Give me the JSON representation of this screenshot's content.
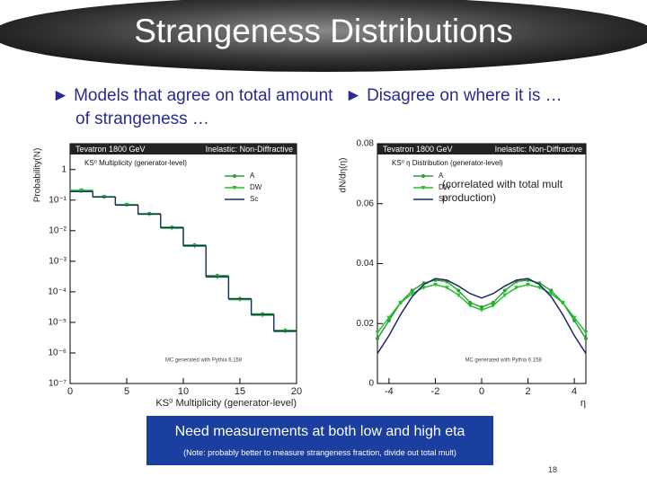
{
  "title": "Strangeness Distributions",
  "bullets": [
    "► Models that agree on total amount of strangeness …",
    "► Disagree on where it is …"
  ],
  "chart_data": [
    {
      "type": "histogram",
      "banner": [
        "Tevatron 1800 GeV",
        "Inelastic: Non-Diffractive"
      ],
      "subtitle": "KS⁰ Multiplicity (generator-level)",
      "x_label": "KS⁰ Multiplicity (generator-level)",
      "y_label": "Probability(N)",
      "annotation": "MC generated with Pythia 6.158",
      "bins": [
        0,
        2,
        4,
        6,
        8,
        10,
        12,
        14,
        16,
        18,
        20
      ],
      "series": [
        {
          "name": "A",
          "color": "#2e9e3a",
          "marker": "circle",
          "values": [
            0.2,
            0.13,
            0.072,
            0.036,
            0.013,
            0.0034,
            0.00034,
            6e-05,
            1.9e-05,
            5.5e-06
          ]
        },
        {
          "name": "DW",
          "color": "#22c02c",
          "marker": "triangle",
          "values": [
            0.21,
            0.125,
            0.07,
            0.034,
            0.012,
            0.0031,
            0.0003,
            5.5e-05,
            1.7e-05,
            5e-06
          ]
        },
        {
          "name": "Sc",
          "color": "#1b2a66",
          "values": [
            0.19,
            0.126,
            0.068,
            0.035,
            0.0125,
            0.0032,
            0.00031,
            5.9e-05,
            1.8e-05,
            5.2e-06
          ]
        }
      ],
      "xlim": [
        0,
        20
      ],
      "xticks": [
        0,
        5,
        10,
        15,
        20
      ],
      "ylim": [
        1e-07,
        7
      ],
      "yscale": "log",
      "yticks": [
        1,
        {
          "value": 0.1,
          "label": "10⁻¹"
        },
        {
          "value": 0.01,
          "label": "10⁻²"
        },
        {
          "value": 0.001,
          "label": "10⁻³"
        },
        {
          "value": 0.0001,
          "label": "10⁻⁴"
        },
        {
          "value": 1e-05,
          "label": "10⁻⁵"
        },
        {
          "value": 1e-06,
          "label": "10⁻⁶"
        },
        {
          "value": 1e-07,
          "label": "10⁻⁷"
        }
      ],
      "legend": "upper right"
    },
    {
      "type": "line",
      "banner": [
        "Tevatron 1800 GeV",
        "Inelastic: Non-Diffractive"
      ],
      "subtitle": "KS⁰ η Distribution (generator-level)",
      "x_label": "η",
      "y_label": "dN/dη(η)",
      "annotation": "MC generated with Pythia 6.158",
      "note": "(correlated with total mult production)",
      "x": [
        -4.5,
        -4,
        -3.5,
        -3,
        -2.5,
        -2,
        -1.5,
        -1,
        -0.5,
        0,
        0.5,
        1,
        1.5,
        2,
        2.5,
        3,
        3.5,
        4,
        4.5
      ],
      "series": [
        {
          "name": "A",
          "color": "#2e9e3a",
          "marker": "circle",
          "values": [
            0.015,
            0.021,
            0.027,
            0.031,
            0.0335,
            0.0345,
            0.034,
            0.031,
            0.027,
            0.0255,
            0.027,
            0.031,
            0.034,
            0.0345,
            0.0335,
            0.031,
            0.027,
            0.021,
            0.015
          ]
        },
        {
          "name": "DW",
          "color": "#22c02c",
          "marker": "triangle",
          "values": [
            0.017,
            0.022,
            0.027,
            0.03,
            0.032,
            0.033,
            0.032,
            0.0295,
            0.026,
            0.0245,
            0.026,
            0.0295,
            0.032,
            0.033,
            0.032,
            0.03,
            0.027,
            0.022,
            0.017
          ]
        },
        {
          "name": "Sc",
          "color": "#1b2a66",
          "values": [
            0.01,
            0.016,
            0.023,
            0.029,
            0.033,
            0.035,
            0.0345,
            0.0325,
            0.03,
            0.0285,
            0.03,
            0.0325,
            0.0345,
            0.035,
            0.033,
            0.029,
            0.023,
            0.016,
            0.01
          ]
        }
      ],
      "xlim": [
        -4.5,
        4.5
      ],
      "xticks": [
        -4,
        -2,
        0,
        2,
        4
      ],
      "ylim": [
        0,
        0.08
      ],
      "yticks": [
        0,
        0.02,
        0.04,
        0.06,
        0.08
      ],
      "legend": "upper left"
    }
  ],
  "callout": "Need measurements at both low and high eta",
  "note": "(Note: probably better to measure strangeness fraction, divide out total mult)",
  "page_number": "18"
}
